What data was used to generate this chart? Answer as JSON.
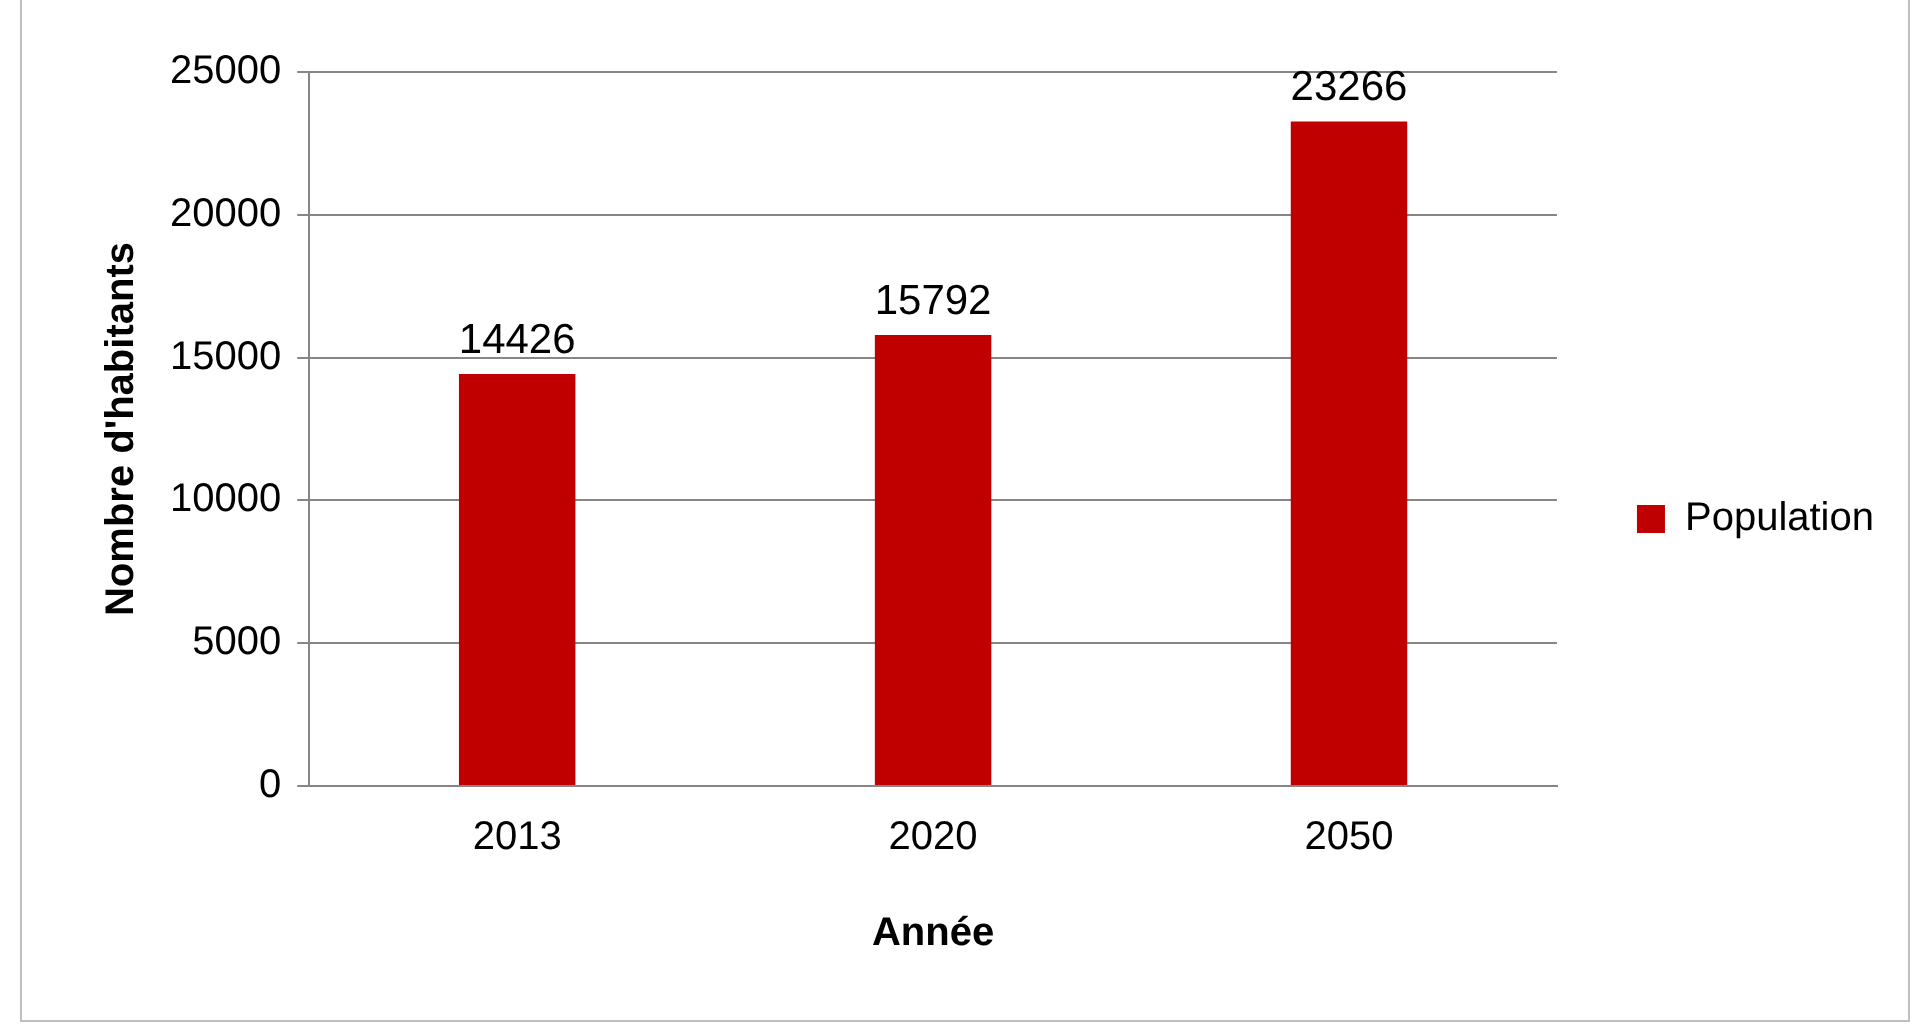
{
  "chart_data": {
    "type": "bar",
    "xlabel": "Année",
    "ylabel": "Nombre d'habitants",
    "categories": [
      "2013",
      "2020",
      "2050"
    ],
    "series": [
      {
        "name": "Population",
        "color": "#c00000",
        "values": [
          14426,
          15792,
          23266
        ]
      }
    ],
    "ylim": [
      0,
      25000
    ],
    "yticks": [
      0,
      5000,
      10000,
      15000,
      20000,
      25000
    ],
    "grid": "y",
    "legend": "right",
    "data_labels": true
  }
}
